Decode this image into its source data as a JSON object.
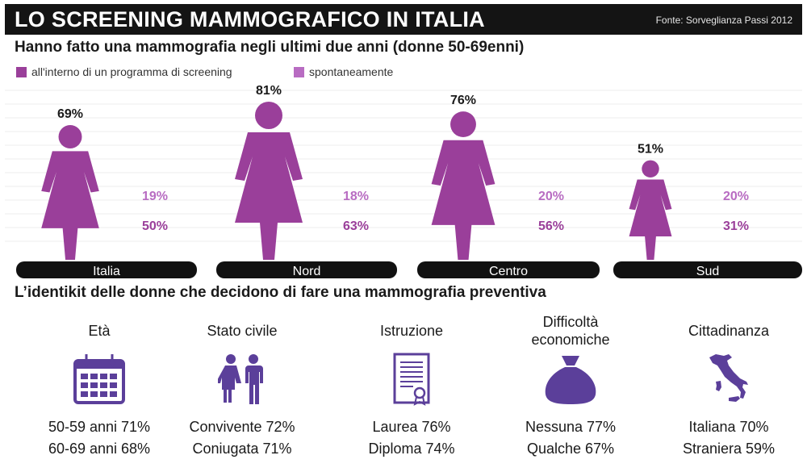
{
  "header": {
    "title": "LO SCREENING MAMMOGRAFICO IN ITALIA",
    "source": "Fonte: Sorveglianza Passi 2012"
  },
  "subtitle": "Hanno fatto una mammografia negli ultimi due anni (donne 50-69enni)",
  "colors": {
    "header_bg": "#141414",
    "program": "#9a3f9a",
    "spontaneous": "#b86cc2",
    "icon_purple": "#5b3f9a",
    "gridline": "#ececec",
    "region_bar": "#111111"
  },
  "chart_data": {
    "type": "bar",
    "title": "",
    "categories": [
      "Italia",
      "Nord",
      "Centro",
      "Sud"
    ],
    "total_labels": [
      "69%",
      "81%",
      "76%",
      "51%"
    ],
    "totals": [
      69,
      81,
      76,
      51
    ],
    "series": [
      {
        "name": "all'interno di un programma di screening",
        "values": [
          50,
          63,
          56,
          31
        ],
        "labels": [
          "50%",
          "63%",
          "56%",
          "31%"
        ]
      },
      {
        "name": "spontaneamente",
        "values": [
          19,
          18,
          20,
          20
        ],
        "labels": [
          "19%",
          "18%",
          "20%",
          "20%"
        ]
      }
    ],
    "legend": "top-left",
    "grid": true
  },
  "section2": {
    "title": "L’identikit delle donne che decidono di fare una mammografia preventiva",
    "columns": [
      {
        "title": "Età",
        "icon": "calendar-icon",
        "stats": [
          "50-59 anni 71%",
          "60-69 anni 68%"
        ]
      },
      {
        "title": "Stato civile",
        "icon": "couple-icon",
        "stats": [
          "Convivente 72%",
          "Coniugata 71%"
        ]
      },
      {
        "title": "Istruzione",
        "icon": "diploma-icon",
        "stats": [
          "Laurea 76%",
          "Diploma 74%"
        ]
      },
      {
        "title": "Difficoltà economiche",
        "icon": "money-bag-icon",
        "stats": [
          "Nessuna 77%",
          "Qualche 67%"
        ]
      },
      {
        "title": "Cittadinanza",
        "icon": "italy-map-icon",
        "stats": [
          "Italiana 70%",
          "Straniera 59%"
        ]
      }
    ]
  }
}
